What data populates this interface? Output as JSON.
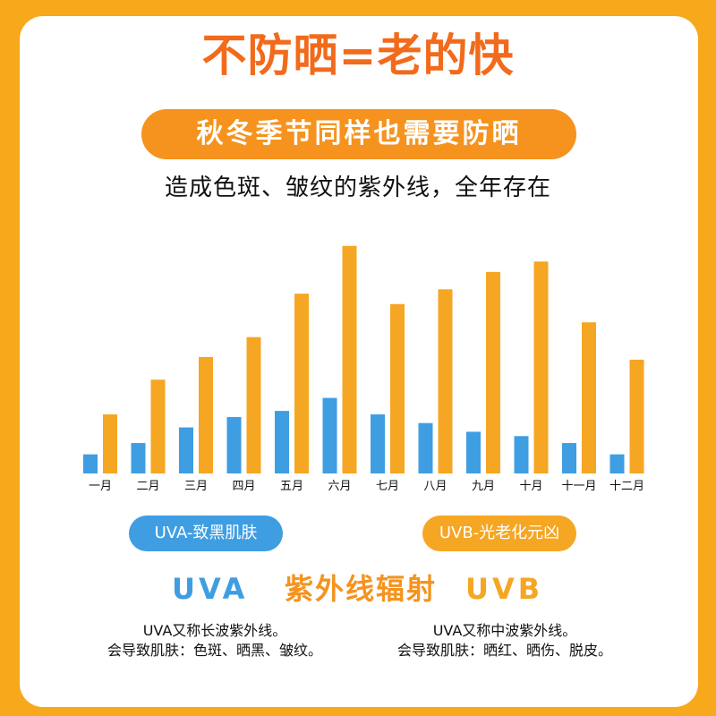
{
  "header": {
    "title": "不防晒=老的快",
    "subtitle": "秋冬季节同样也需要防晒",
    "note": "造成色斑、皱纹的紫外线，全年存在"
  },
  "chart_data": {
    "type": "bar",
    "categories": [
      "一月",
      "二月",
      "三月",
      "四月",
      "五月",
      "六月",
      "七月",
      "八月",
      "九月",
      "十月",
      "十一月",
      "十二月"
    ],
    "series": [
      {
        "name": "UVA",
        "color": "#3f9de2",
        "values": [
          22,
          35,
          53,
          65,
          72,
          87,
          68,
          58,
          48,
          43,
          35,
          22
        ]
      },
      {
        "name": "UVB",
        "color": "#f5a623",
        "values": [
          68,
          108,
          134,
          157,
          207,
          262,
          195,
          212,
          232,
          244,
          174,
          131
        ]
      }
    ],
    "ylim": [
      0,
      270
    ],
    "title": "",
    "xlabel": "",
    "ylabel": ""
  },
  "legend": {
    "uva_label": "UVA-致黑肌肤",
    "uvb_label": "UVB-光老化元凶"
  },
  "footer": {
    "uva": "UVA",
    "middle": "紫外线辐射",
    "uvb": "UVB",
    "uva_desc_line1": "UVA又称长波紫外线。",
    "uva_desc_line2": "会导致肌肤：色斑、晒黑、皱纹。",
    "uvb_desc_line1": "UVA又称中波紫外线。",
    "uvb_desc_line2": "会导致肌肤：晒红、晒伤、脱皮。"
  }
}
